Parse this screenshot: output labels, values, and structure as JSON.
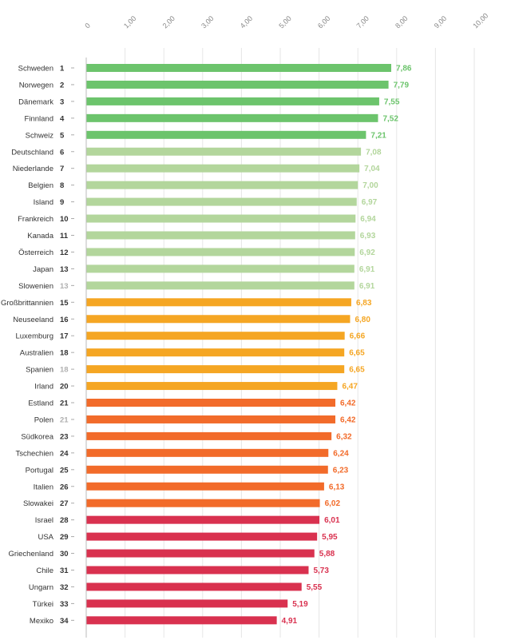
{
  "colors": {
    "dark_green": "#6cc46c",
    "light_green": "#b3d69c",
    "yellow": "#f5a623",
    "orange": "#f26b2a",
    "red": "#d9314f",
    "label_text": "#333333",
    "tied_rank_text": "#b0b0b0",
    "grid": "#e6e6e6",
    "axis": "#bbbbbb",
    "tick_text": "#888888"
  },
  "chart_data": {
    "type": "bar",
    "orientation": "horizontal",
    "title": "",
    "xlabel": "",
    "ylabel": "",
    "xlim": [
      0,
      10
    ],
    "grid": true,
    "ticks": [
      "0",
      "1,00",
      "2,00",
      "3,00",
      "4,00",
      "5,00",
      "6,00",
      "7,00",
      "8,00",
      "9,00",
      "10,00"
    ],
    "tick_values": [
      0,
      1,
      2,
      3,
      4,
      5,
      6,
      7,
      8,
      9,
      10
    ],
    "rows": [
      {
        "country": "Schweden",
        "rank": "1",
        "tied": false,
        "value": 7.86,
        "label": "7,86",
        "group": "dark_green"
      },
      {
        "country": "Norwegen",
        "rank": "2",
        "tied": false,
        "value": 7.79,
        "label": "7,79",
        "group": "dark_green"
      },
      {
        "country": "Dänemark",
        "rank": "3",
        "tied": false,
        "value": 7.55,
        "label": "7,55",
        "group": "dark_green"
      },
      {
        "country": "Finnland",
        "rank": "4",
        "tied": false,
        "value": 7.52,
        "label": "7,52",
        "group": "dark_green"
      },
      {
        "country": "Schweiz",
        "rank": "5",
        "tied": false,
        "value": 7.21,
        "label": "7,21",
        "group": "dark_green"
      },
      {
        "country": "Deutschland",
        "rank": "6",
        "tied": false,
        "value": 7.08,
        "label": "7,08",
        "group": "light_green"
      },
      {
        "country": "Niederlande",
        "rank": "7",
        "tied": false,
        "value": 7.04,
        "label": "7,04",
        "group": "light_green"
      },
      {
        "country": "Belgien",
        "rank": "8",
        "tied": false,
        "value": 7.0,
        "label": "7,00",
        "group": "light_green"
      },
      {
        "country": "Island",
        "rank": "9",
        "tied": false,
        "value": 6.97,
        "label": "6,97",
        "group": "light_green"
      },
      {
        "country": "Frankreich",
        "rank": "10",
        "tied": false,
        "value": 6.94,
        "label": "6,94",
        "group": "light_green"
      },
      {
        "country": "Kanada",
        "rank": "11",
        "tied": false,
        "value": 6.93,
        "label": "6,93",
        "group": "light_green"
      },
      {
        "country": "Österreich",
        "rank": "12",
        "tied": false,
        "value": 6.92,
        "label": "6,92",
        "group": "light_green"
      },
      {
        "country": "Japan",
        "rank": "13",
        "tied": false,
        "value": 6.91,
        "label": "6,91",
        "group": "light_green"
      },
      {
        "country": "Slowenien",
        "rank": "13",
        "tied": true,
        "value": 6.91,
        "label": "6,91",
        "group": "light_green"
      },
      {
        "country": "Großbrittannien",
        "rank": "15",
        "tied": false,
        "value": 6.83,
        "label": "6,83",
        "group": "yellow"
      },
      {
        "country": "Neuseeland",
        "rank": "16",
        "tied": false,
        "value": 6.8,
        "label": "6,80",
        "group": "yellow"
      },
      {
        "country": "Luxemburg",
        "rank": "17",
        "tied": false,
        "value": 6.66,
        "label": "6,66",
        "group": "yellow"
      },
      {
        "country": "Australien",
        "rank": "18",
        "tied": false,
        "value": 6.65,
        "label": "6,65",
        "group": "yellow"
      },
      {
        "country": "Spanien",
        "rank": "18",
        "tied": true,
        "value": 6.65,
        "label": "6,65",
        "group": "yellow"
      },
      {
        "country": "Irland",
        "rank": "20",
        "tied": false,
        "value": 6.47,
        "label": "6,47",
        "group": "yellow"
      },
      {
        "country": "Estland",
        "rank": "21",
        "tied": false,
        "value": 6.42,
        "label": "6,42",
        "group": "orange"
      },
      {
        "country": "Polen",
        "rank": "21",
        "tied": true,
        "value": 6.42,
        "label": "6,42",
        "group": "orange"
      },
      {
        "country": "Südkorea",
        "rank": "23",
        "tied": false,
        "value": 6.32,
        "label": "6,32",
        "group": "orange"
      },
      {
        "country": "Tschechien",
        "rank": "24",
        "tied": false,
        "value": 6.24,
        "label": "6,24",
        "group": "orange"
      },
      {
        "country": "Portugal",
        "rank": "25",
        "tied": false,
        "value": 6.23,
        "label": "6,23",
        "group": "orange"
      },
      {
        "country": "Italien",
        "rank": "26",
        "tied": false,
        "value": 6.13,
        "label": "6,13",
        "group": "orange"
      },
      {
        "country": "Slowakei",
        "rank": "27",
        "tied": false,
        "value": 6.02,
        "label": "6,02",
        "group": "orange"
      },
      {
        "country": "Israel",
        "rank": "28",
        "tied": false,
        "value": 6.01,
        "label": "6,01",
        "group": "red"
      },
      {
        "country": "USA",
        "rank": "29",
        "tied": false,
        "value": 5.95,
        "label": "5,95",
        "group": "red"
      },
      {
        "country": "Griechenland",
        "rank": "30",
        "tied": false,
        "value": 5.88,
        "label": "5,88",
        "group": "red"
      },
      {
        "country": "Chile",
        "rank": "31",
        "tied": false,
        "value": 5.73,
        "label": "5,73",
        "group": "red"
      },
      {
        "country": "Ungarn",
        "rank": "32",
        "tied": false,
        "value": 5.55,
        "label": "5,55",
        "group": "red"
      },
      {
        "country": "Türkei",
        "rank": "33",
        "tied": false,
        "value": 5.19,
        "label": "5,19",
        "group": "red"
      },
      {
        "country": "Mexiko",
        "rank": "34",
        "tied": false,
        "value": 4.91,
        "label": "4,91",
        "group": "red"
      }
    ]
  }
}
